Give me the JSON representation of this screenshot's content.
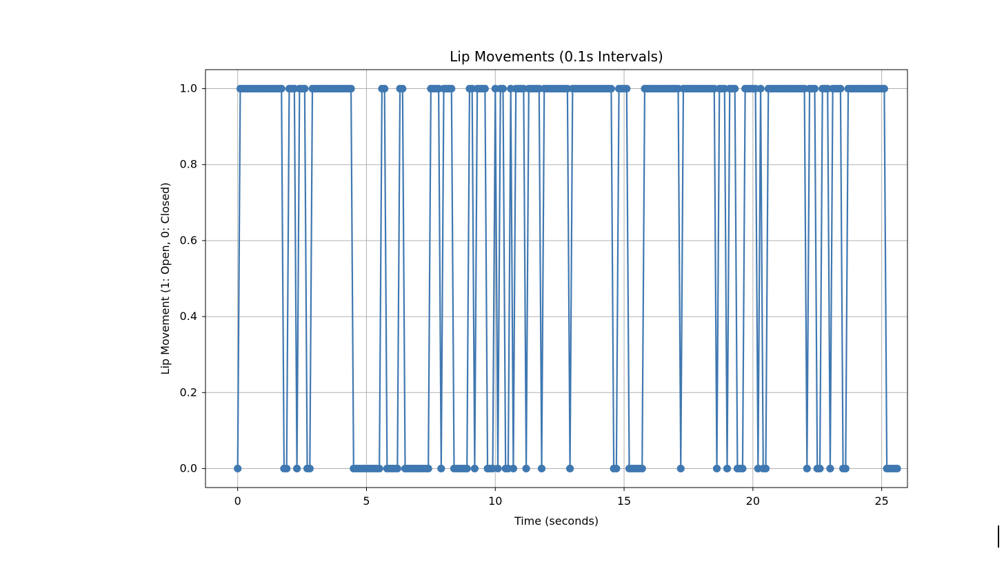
{
  "chart_data": {
    "type": "line",
    "title": "Lip Movements (0.1s Intervals)",
    "xlabel": "Time (seconds)",
    "ylabel": "Lip Movement (1: Open, 0: Closed)",
    "xlim": [
      -1.25,
      26.0
    ],
    "ylim": [
      -0.05,
      1.05
    ],
    "x_ticks": [
      0,
      5,
      10,
      15,
      20,
      25
    ],
    "x_tick_labels": [
      "0",
      "5",
      "10",
      "15",
      "20",
      "25"
    ],
    "y_ticks": [
      0.0,
      0.2,
      0.4,
      0.6,
      0.8,
      1.0
    ],
    "y_tick_labels": [
      "0.0",
      "0.2",
      "0.4",
      "0.6",
      "0.8",
      "1.0"
    ],
    "grid": true,
    "marker": "circle",
    "line_color": "#3f78b1",
    "series": [
      {
        "x_start": 0.0,
        "x_step": 0.1,
        "values": [
          0,
          1,
          1,
          1,
          1,
          1,
          1,
          1,
          1,
          1,
          1,
          1,
          1,
          1,
          1,
          1,
          1,
          1,
          0,
          0,
          1,
          1,
          1,
          0,
          1,
          1,
          1,
          0,
          0,
          1,
          1,
          1,
          1,
          1,
          1,
          1,
          1,
          1,
          1,
          1,
          1,
          1,
          1,
          1,
          1,
          0,
          0,
          0,
          0,
          0,
          0,
          0,
          0,
          0,
          0,
          0,
          1,
          1,
          0,
          0,
          0,
          0,
          0,
          1,
          1,
          0,
          0,
          0,
          0,
          0,
          0,
          0,
          0,
          0,
          0,
          1,
          1,
          1,
          1,
          0,
          1,
          1,
          1,
          1,
          0,
          0,
          0,
          0,
          0,
          0,
          1,
          1,
          0,
          1,
          1,
          1,
          1,
          0,
          0,
          0,
          1,
          0,
          1,
          1,
          0,
          0,
          1,
          0,
          1,
          1,
          1,
          1,
          0,
          1,
          1,
          1,
          1,
          1,
          0,
          1,
          1,
          1,
          1,
          1,
          1,
          1,
          1,
          1,
          1,
          0,
          1,
          1,
          1,
          1,
          1,
          1,
          1,
          1,
          1,
          1,
          1,
          1,
          1,
          1,
          1,
          1,
          0,
          0,
          1,
          1,
          1,
          1,
          0,
          0,
          0,
          0,
          0,
          0,
          1,
          1,
          1,
          1,
          1,
          1,
          1,
          1,
          1,
          1,
          1,
          1,
          1,
          1,
          0,
          1,
          1,
          1,
          1,
          1,
          1,
          1,
          1,
          1,
          1,
          1,
          1,
          1,
          0,
          1,
          1,
          1,
          0,
          1,
          1,
          1,
          0,
          0,
          0,
          1,
          1,
          1,
          1,
          1,
          0,
          1,
          0,
          0,
          1,
          1,
          1,
          1,
          1,
          1,
          1,
          1,
          1,
          1,
          1,
          1,
          1,
          1,
          1,
          0,
          1,
          1,
          1,
          0,
          0,
          1,
          1,
          1,
          0,
          1,
          1,
          1,
          1,
          0,
          0,
          1,
          1,
          1,
          1,
          1,
          1,
          1,
          1,
          1,
          1,
          1,
          1,
          1,
          1,
          1,
          0,
          0,
          0,
          0,
          0
        ]
      }
    ]
  }
}
